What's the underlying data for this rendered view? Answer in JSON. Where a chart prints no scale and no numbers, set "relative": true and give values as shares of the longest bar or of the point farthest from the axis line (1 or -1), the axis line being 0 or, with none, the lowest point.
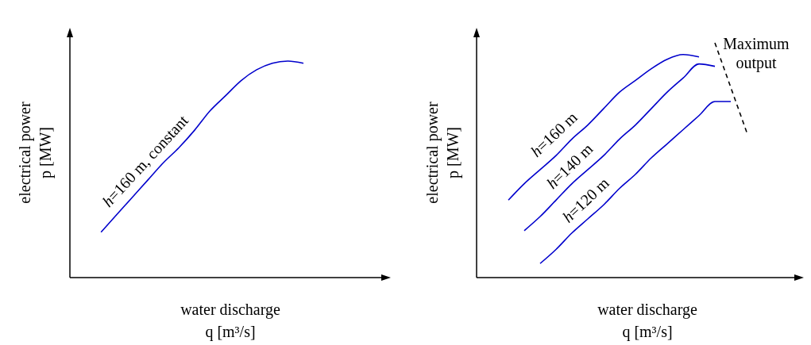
{
  "chart_data": [
    {
      "type": "line",
      "relative": true,
      "xlabel": "water discharge\nq [m³/s]",
      "ylabel": "electrical power\np [MW]",
      "categories": [
        null,
        null,
        null,
        null,
        null,
        null,
        null,
        null,
        null,
        null,
        null,
        null,
        null,
        null,
        null,
        null,
        null,
        null,
        null,
        null,
        null
      ],
      "series": [
        {
          "name": "h=160 m, constant",
          "color": "#0000cc",
          "values": [
            null,
            null,
            0.21,
            0.29,
            0.37,
            0.45,
            0.53,
            0.6,
            0.68,
            0.77,
            0.84,
            0.91,
            0.96,
            0.99,
            1,
            0.99,
            null,
            null,
            null,
            null,
            null
          ]
        }
      ]
    },
    {
      "type": "line",
      "relative": true,
      "xlabel": "water discharge\nq [m³/s]",
      "ylabel": "electrical power\np [MW]",
      "categories": [
        null,
        null,
        null,
        null,
        null,
        null,
        null,
        null,
        null,
        null,
        null,
        null,
        null,
        null,
        null,
        null,
        null,
        null,
        null,
        null,
        null
      ],
      "series": [
        {
          "name": "h=160 m",
          "color": "#0000cc",
          "values": [
            null,
            null,
            0.33,
            0.4,
            0.46,
            0.52,
            0.59,
            0.65,
            0.72,
            0.79,
            0.84,
            0.89,
            0.93,
            0.95,
            0.94,
            null,
            null,
            null,
            null,
            null,
            null
          ]
        },
        {
          "name": "h=140 m",
          "color": "#0000cc",
          "values": [
            null,
            null,
            null,
            0.2,
            0.26,
            0.33,
            0.4,
            0.46,
            0.52,
            0.59,
            0.65,
            0.72,
            0.79,
            0.85,
            0.91,
            0.9,
            null,
            null,
            null,
            null,
            null
          ]
        },
        {
          "name": "h=120 m",
          "color": "#0000cc",
          "values": [
            null,
            null,
            null,
            null,
            0.06,
            0.12,
            0.19,
            0.25,
            0.31,
            0.38,
            0.44,
            0.51,
            0.57,
            0.63,
            0.69,
            0.75,
            0.75,
            null,
            null,
            null,
            null
          ]
        },
        {
          "name": "Maximum output",
          "color": "#000000",
          "line_style": "dashed",
          "values": [
            null,
            null,
            null,
            null,
            null,
            null,
            null,
            null,
            null,
            null,
            null,
            null,
            null,
            null,
            null,
            1,
            0.81,
            0.62,
            null,
            null,
            null
          ]
        }
      ]
    }
  ]
}
